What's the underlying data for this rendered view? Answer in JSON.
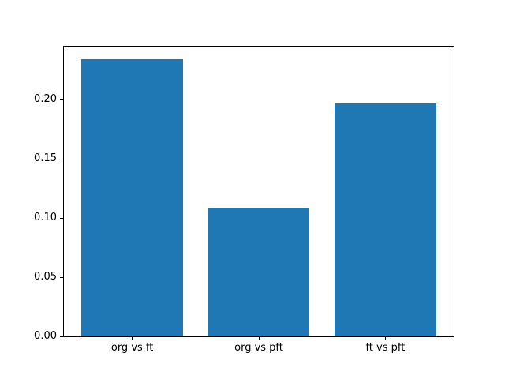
{
  "figure": {
    "background_color": "#ffffff",
    "bar_color": "#1f77b4",
    "spine_color": "#000000",
    "text_color": "#000000"
  },
  "chart_data": {
    "type": "bar",
    "categories": [
      "org vs ft",
      "org vs pft",
      "ft vs pft"
    ],
    "values": [
      0.234,
      0.109,
      0.197
    ],
    "x": [
      0,
      1,
      2
    ],
    "bar_width": 0.8,
    "xlim": [
      -0.54,
      2.54
    ],
    "ylim": [
      0,
      0.245
    ],
    "yticks": [
      {
        "value": 0.0,
        "label": "0.00"
      },
      {
        "value": 0.05,
        "label": "0.05"
      },
      {
        "value": 0.1,
        "label": "0.10"
      },
      {
        "value": 0.15,
        "label": "0.15"
      },
      {
        "value": 0.2,
        "label": "0.20"
      }
    ],
    "grid": false,
    "legend": false
  }
}
